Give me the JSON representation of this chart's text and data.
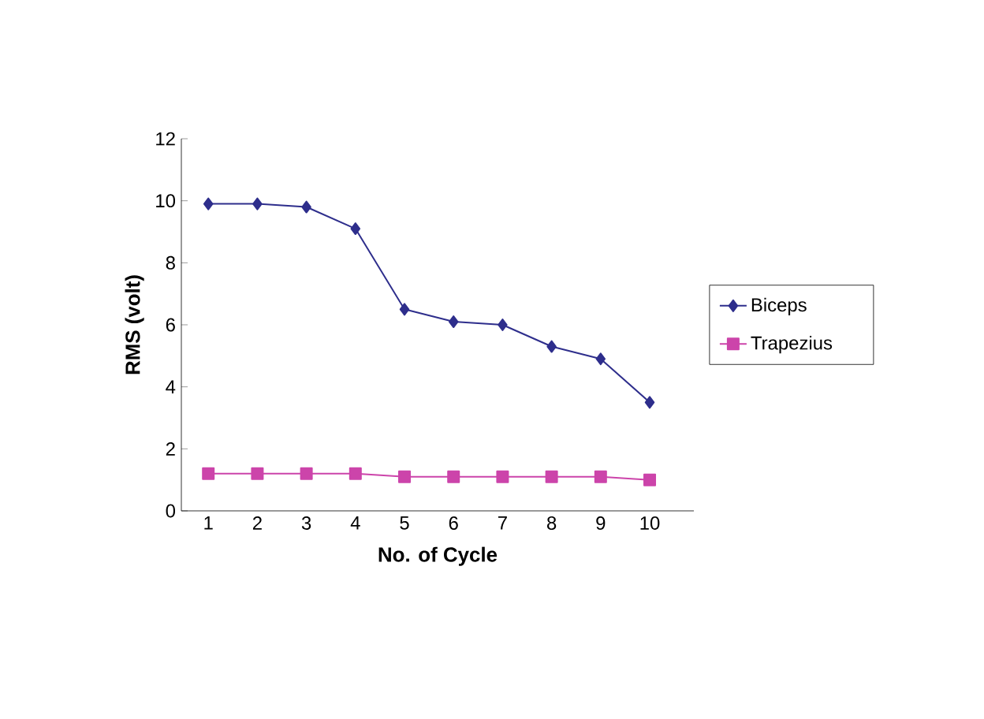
{
  "chart_data": {
    "type": "line",
    "xlabel": "No. of Cycle",
    "ylabel": "RMS (volt)",
    "categories": [
      "1",
      "2",
      "3",
      "4",
      "5",
      "6",
      "7",
      "8",
      "9",
      "10"
    ],
    "series": [
      {
        "name": "Biceps",
        "color": "#2e2e8c",
        "marker": "diamond",
        "values": [
          9.9,
          9.9,
          9.8,
          9.1,
          6.5,
          6.1,
          6.0,
          5.3,
          4.9,
          3.5
        ]
      },
      {
        "name": "Trapezius",
        "color": "#cc44aa",
        "marker": "square",
        "values": [
          1.2,
          1.2,
          1.2,
          1.2,
          1.1,
          1.1,
          1.1,
          1.1,
          1.1,
          1.0
        ]
      }
    ],
    "ylim": [
      0,
      12
    ],
    "yticks": [
      0,
      2,
      4,
      6,
      8,
      10,
      12
    ],
    "legend": "right"
  }
}
